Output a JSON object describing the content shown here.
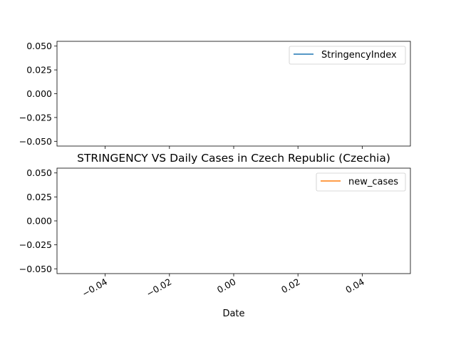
{
  "chart_data": {
    "title": "STRINGENCY VS Daily Cases in Czech Republic (Czechia)",
    "xlabel": "Date",
    "x_ticks": [
      "−0.04",
      "−0.02",
      "0.00",
      "0.02",
      "0.04"
    ],
    "x_tick_values": [
      -0.04,
      -0.02,
      0.0,
      0.02,
      0.04
    ],
    "xlim": [
      -0.055,
      0.055
    ],
    "panels": [
      {
        "type": "line",
        "series": [
          {
            "name": "StringencyIndex",
            "color": "#1f77b4",
            "values": []
          }
        ],
        "ylim": [
          -0.055,
          0.055
        ],
        "y_ticks": [
          "0.050",
          "0.025",
          "0.000",
          "−0.025",
          "−0.050"
        ],
        "y_tick_values": [
          0.05,
          0.025,
          0.0,
          -0.025,
          -0.05
        ],
        "legend_position": "upper right"
      },
      {
        "type": "line",
        "series": [
          {
            "name": "new_cases",
            "color": "#ff7f0e",
            "values": []
          }
        ],
        "ylim": [
          -0.055,
          0.055
        ],
        "y_ticks": [
          "0.050",
          "0.025",
          "0.000",
          "−0.025",
          "−0.050"
        ],
        "y_tick_values": [
          0.05,
          0.025,
          0.0,
          -0.025,
          -0.05
        ],
        "legend_position": "upper right"
      }
    ]
  }
}
